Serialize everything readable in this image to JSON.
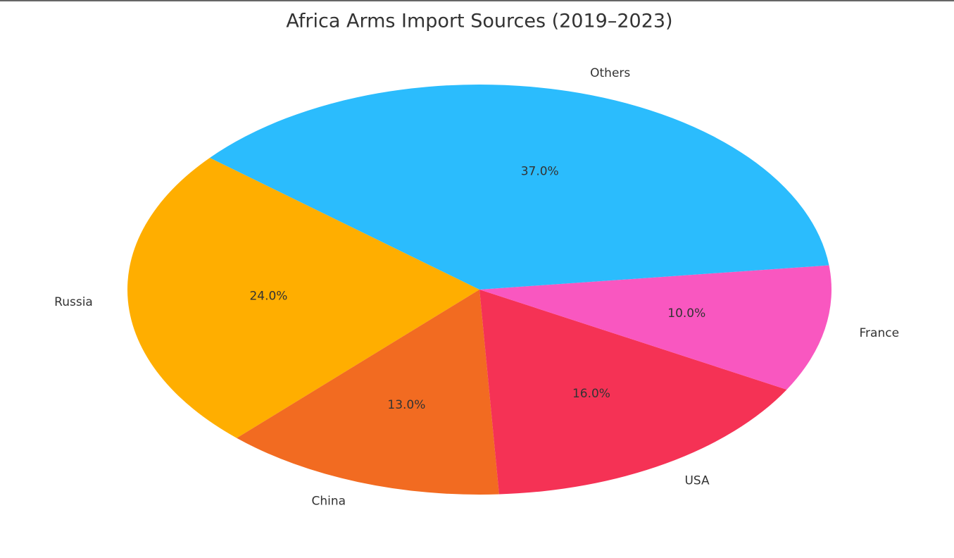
{
  "chart_data": {
    "type": "pie",
    "title": "Africa Arms Import Sources (2019–2023)",
    "categories": [
      "Russia",
      "China",
      "USA",
      "France",
      "Others"
    ],
    "values": [
      24,
      13,
      16,
      10,
      37
    ],
    "value_labels": [
      "24.0%",
      "13.0%",
      "16.0%",
      "10.0%",
      "37.0%"
    ],
    "colors": [
      "#ffae00",
      "#f26b21",
      "#f53255",
      "#f957c0",
      "#2bbcfd"
    ]
  }
}
